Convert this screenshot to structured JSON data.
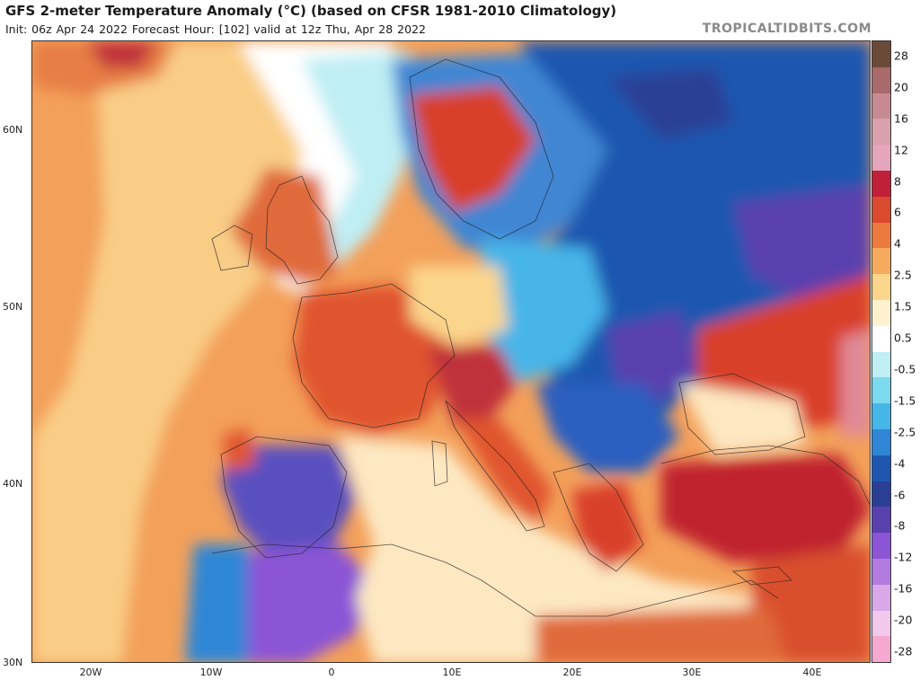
{
  "title": "GFS 2-meter Temperature Anomaly (°C) (based on CFSR 1981-2010 Climatology)",
  "subtitle": "Init: 06z Apr 24 2022   Forecast Hour: [102]   valid at 12z Thu, Apr 28 2022",
  "brand": "TROPICALTIDBITS.COM",
  "lat_labels": [
    "60N",
    "50N",
    "40N",
    "30N"
  ],
  "lon_labels": [
    "20W",
    "10W",
    "0",
    "10E",
    "20E",
    "30E",
    "40E"
  ],
  "colorbar": {
    "labels": [
      "28",
      "20",
      "16",
      "12",
      "8",
      "6",
      "4",
      "2.5",
      "1.5",
      "0.5",
      "-0.5",
      "-1.5",
      "-2.5",
      "-4",
      "-6",
      "-8",
      "-12",
      "-16",
      "-20",
      "-28"
    ],
    "colors": [
      "#6b4a3a",
      "#a86a6a",
      "#c88a92",
      "#d9a0ad",
      "#e5a6bc",
      "#c0203a",
      "#d94a2e",
      "#ec7a3e",
      "#f6aa5e",
      "#fbd58c",
      "#fff2cf",
      "#ffffff",
      "#bfeef4",
      "#7cd9ee",
      "#46b5e8",
      "#2f86d6",
      "#1f57b0",
      "#2a3f94",
      "#5a3fae",
      "#8b55d6",
      "#b37ae0",
      "#d9a8e8",
      "#f2c8ec",
      "#f5a9d0"
    ]
  },
  "regions": [
    {
      "name": "north-atlantic-west",
      "color": "#f3a05a"
    },
    {
      "name": "north-atlantic-far-north",
      "color": "#e77e45"
    },
    {
      "name": "atlantic-mid-pale",
      "color": "#f9cd86"
    },
    {
      "name": "atlantic-white-band",
      "color": "#ffffff"
    },
    {
      "name": "norwegian-sea-cyan",
      "color": "#bfeef4"
    },
    {
      "name": "scandinavia-red",
      "color": "#d9402c"
    },
    {
      "name": "scandinavia-blue",
      "color": "#3f86d3"
    },
    {
      "name": "eastern-europe-deep-blue",
      "color": "#1f57b0"
    },
    {
      "name": "russia-purple",
      "color": "#5a3fae"
    },
    {
      "name": "british-isles-red",
      "color": "#e06a3a"
    },
    {
      "name": "france-red",
      "color": "#e0552e"
    },
    {
      "name": "iberia-purple",
      "color": "#5a4fc0"
    },
    {
      "name": "north-africa-purple",
      "color": "#8b55d6"
    },
    {
      "name": "turkey-red",
      "color": "#c0202e"
    },
    {
      "name": "black-sea-red",
      "color": "#d9402c"
    },
    {
      "name": "mediterranean-pale",
      "color": "#fde8c2"
    },
    {
      "name": "east-mediterranean-red",
      "color": "#d9502e"
    },
    {
      "name": "caspian-pink",
      "color": "#e08a98"
    }
  ]
}
